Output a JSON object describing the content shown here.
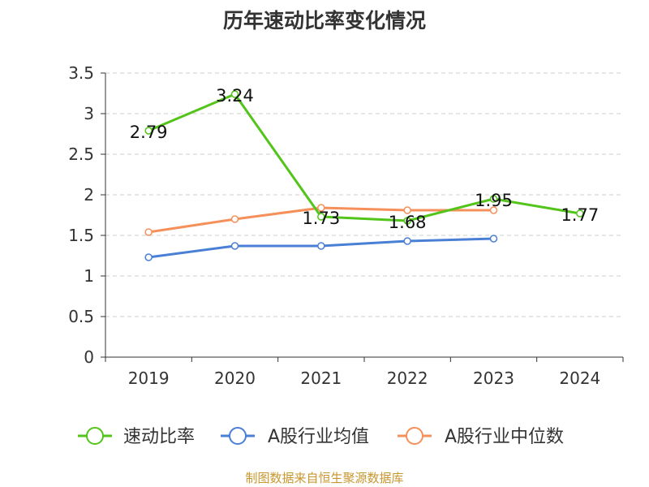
{
  "title": "历年速动比率变化情况",
  "source": "制图数据来自恒生聚源数据库",
  "colors": {
    "series": [
      "#52c41a",
      "#4a7fd6",
      "#f5905a"
    ],
    "grid": "#cccccc",
    "axis": "#333333",
    "text": "#333333",
    "source": "#c8962e"
  },
  "chart_data": {
    "type": "line",
    "title": "历年速动比率变化情况",
    "categories": [
      "2019",
      "2020",
      "2021",
      "2022",
      "2023",
      "2024"
    ],
    "ylim": [
      0,
      3.5
    ],
    "yticks": [
      0,
      0.5,
      1,
      1.5,
      2,
      2.5,
      3,
      3.5
    ],
    "ytick_labels": [
      "0",
      "0.5",
      "1",
      "1.5",
      "2",
      "2.5",
      "3",
      "3.5"
    ],
    "grid": true,
    "legend_position": "bottom",
    "series": [
      {
        "name": "速动比率",
        "values": [
          2.79,
          3.24,
          1.73,
          1.68,
          1.95,
          1.77
        ],
        "labels": [
          "2.79",
          "3.24",
          "1.73",
          "1.68",
          "1.95",
          "1.77"
        ]
      },
      {
        "name": "A股行业均值",
        "values": [
          1.23,
          1.37,
          1.37,
          1.43,
          1.46,
          null
        ]
      },
      {
        "name": "A股行业中位数",
        "values": [
          1.54,
          1.7,
          1.84,
          1.81,
          1.81,
          null
        ]
      }
    ]
  }
}
